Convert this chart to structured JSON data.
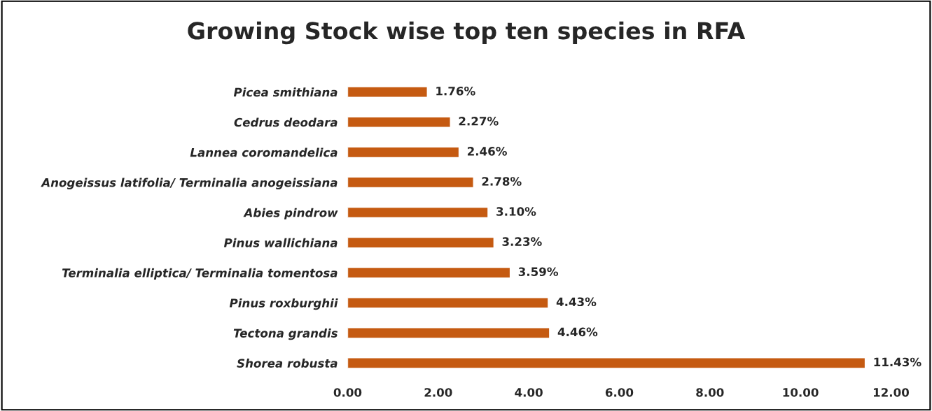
{
  "chart_data": {
    "type": "bar",
    "orientation": "horizontal",
    "title": "Growing Stock wise top ten species in RFA",
    "categories": [
      "Picea smithiana",
      "Cedrus deodara",
      "Lannea coromandelica",
      "Anogeissus latifolia/ Terminalia anogeissiana",
      "Abies pindrow",
      "Pinus wallichiana",
      "Terminalia elliptica/ Terminalia tomentosa",
      "Pinus roxburghii",
      "Tectona grandis",
      "Shorea robusta"
    ],
    "values": [
      1.76,
      2.27,
      2.46,
      2.78,
      3.1,
      3.23,
      3.59,
      4.43,
      4.46,
      11.43
    ],
    "value_labels": [
      "1.76%",
      "2.27%",
      "2.46%",
      "2.78%",
      "3.10%",
      "3.23%",
      "3.59%",
      "4.43%",
      "4.46%",
      "11.43%"
    ],
    "color": "#c55a11",
    "xlim": [
      0,
      12
    ],
    "xticks": [
      {
        "value": 0,
        "label": "0.00"
      },
      {
        "value": 2,
        "label": "2.00"
      },
      {
        "value": 4,
        "label": "4.00"
      },
      {
        "value": 6,
        "label": "6.00"
      },
      {
        "value": 8,
        "label": "8.00"
      },
      {
        "value": 10,
        "label": "10.00"
      },
      {
        "value": 12,
        "label": "12.00"
      }
    ],
    "grid": false
  }
}
